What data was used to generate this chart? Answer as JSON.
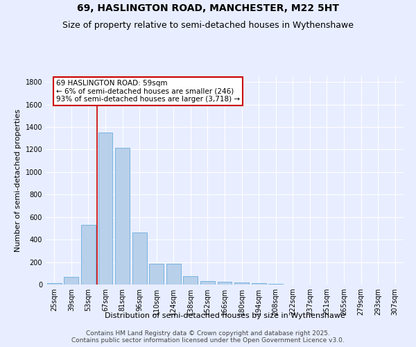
{
  "title": "69, HASLINGTON ROAD, MANCHESTER, M22 5HT",
  "subtitle": "Size of property relative to semi-detached houses in Wythenshawe",
  "xlabel": "Distribution of semi-detached houses by size in Wythenshawe",
  "ylabel": "Number of semi-detached properties",
  "footer1": "Contains HM Land Registry data © Crown copyright and database right 2025.",
  "footer2": "Contains public sector information licensed under the Open Government Licence v3.0.",
  "categories": [
    "25sqm",
    "39sqm",
    "53sqm",
    "67sqm",
    "81sqm",
    "96sqm",
    "110sqm",
    "124sqm",
    "138sqm",
    "152sqm",
    "166sqm",
    "180sqm",
    "194sqm",
    "208sqm",
    "222sqm",
    "237sqm",
    "251sqm",
    "265sqm",
    "279sqm",
    "293sqm",
    "307sqm"
  ],
  "values": [
    15,
    70,
    530,
    1350,
    1215,
    460,
    185,
    185,
    75,
    30,
    25,
    20,
    10,
    5,
    0,
    0,
    0,
    0,
    0,
    0,
    0
  ],
  "bar_color": "#b8d0ea",
  "bar_edge_color": "#6aabdd",
  "annotation_box_color": "#ffffff",
  "annotation_border_color": "#cc0000",
  "red_line_x": 2.5,
  "annotation_text_line1": "69 HASLINGTON ROAD: 59sqm",
  "annotation_text_line2": "← 6% of semi-detached houses are smaller (246)",
  "annotation_text_line3": "93% of semi-detached houses are larger (3,718) →",
  "ylim": [
    0,
    1850
  ],
  "yticks": [
    0,
    200,
    400,
    600,
    800,
    1000,
    1200,
    1400,
    1600,
    1800
  ],
  "background_color": "#e8eeff",
  "grid_color": "#ffffff",
  "title_fontsize": 10,
  "subtitle_fontsize": 9,
  "axis_label_fontsize": 8,
  "tick_fontsize": 7,
  "annotation_fontsize": 7.5,
  "footer_fontsize": 6.5
}
